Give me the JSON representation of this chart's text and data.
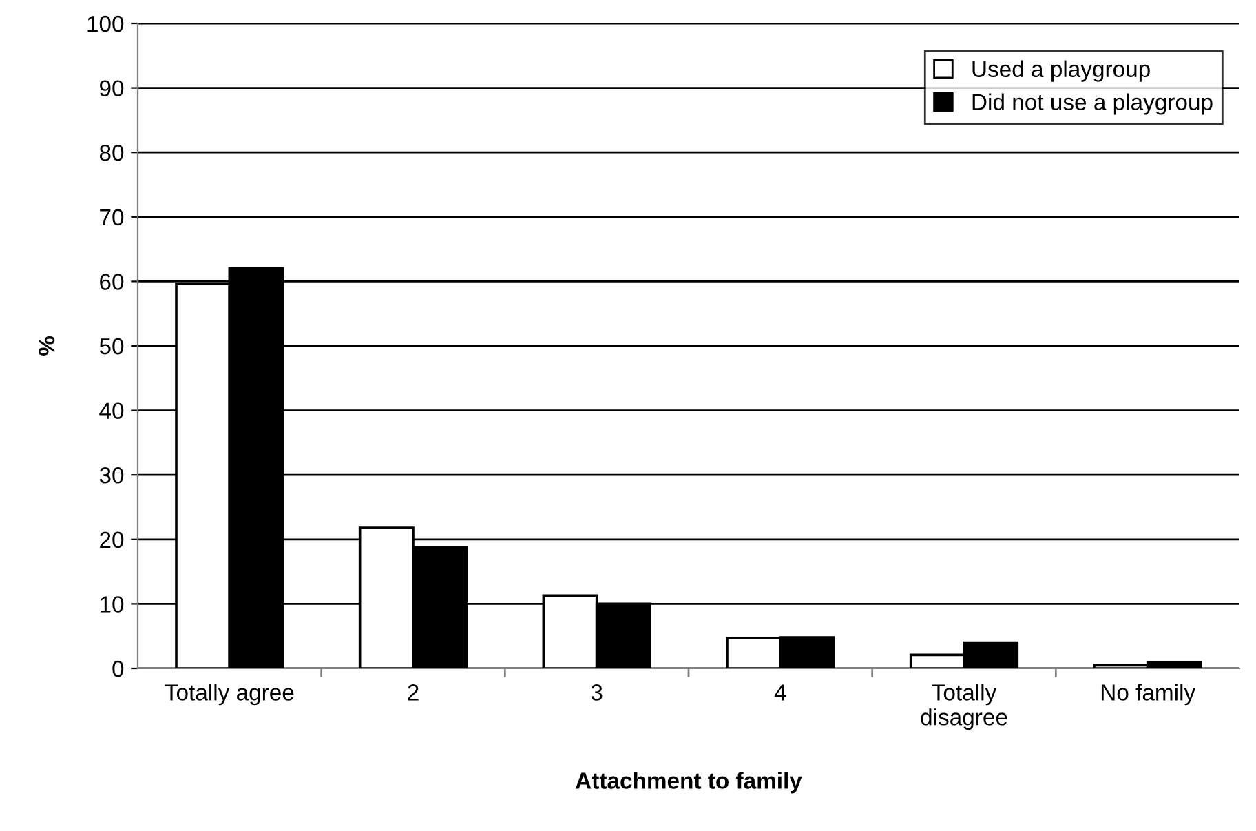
{
  "chart_data": {
    "type": "bar",
    "xlabel": "Attachment to family",
    "ylabel": "%",
    "categories": [
      "Totally agree",
      "2",
      "3",
      "4",
      "Totally\ndisagree",
      "No family"
    ],
    "series": [
      {
        "name": "Used a playgroup",
        "color": "#ffffff",
        "values": [
          59.6,
          21.8,
          11.3,
          4.7,
          2.1,
          0.5
        ]
      },
      {
        "name": "Did not use a playgroup",
        "color": "#000000",
        "values": [
          62,
          18.8,
          10,
          4.8,
          4,
          0.9
        ]
      }
    ],
    "ylim": [
      0,
      100
    ],
    "yticks": [
      0,
      10,
      20,
      30,
      40,
      50,
      60,
      70,
      80,
      90,
      100
    ],
    "grid": "y",
    "legend": "top right"
  }
}
